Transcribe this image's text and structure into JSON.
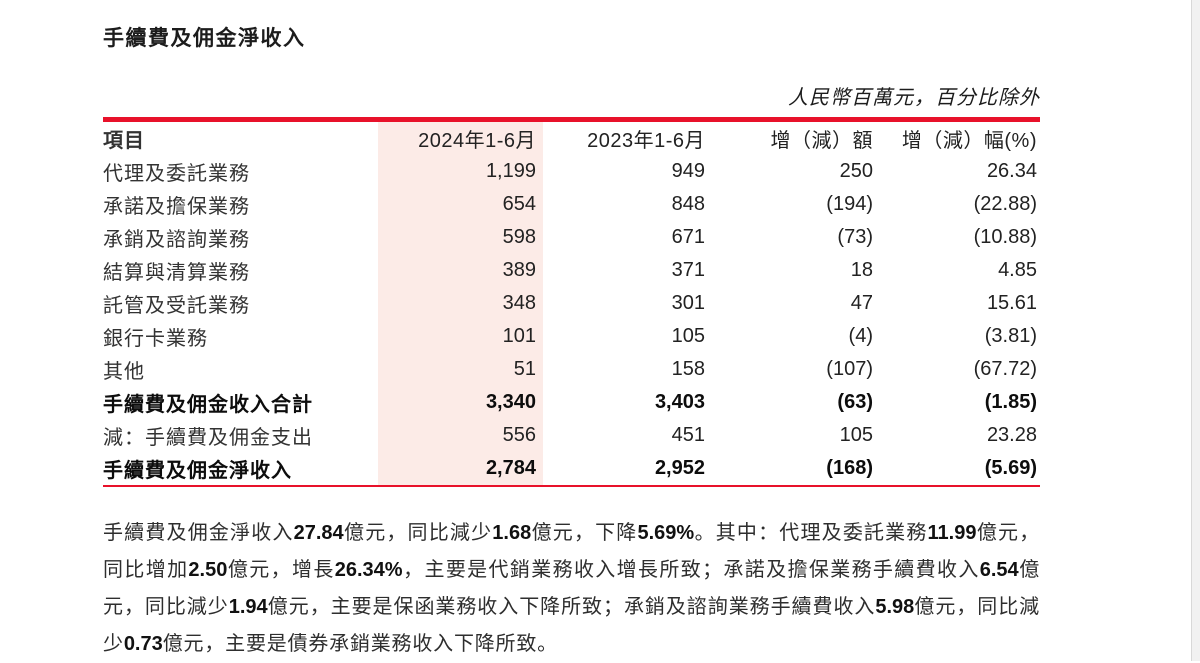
{
  "page": {
    "title": "手續費及佣金淨收入",
    "unit_note": "人民幣百萬元，百分比除外"
  },
  "table": {
    "columns": [
      "項目",
      "2024年1-6月",
      "2023年1-6月",
      "增（減）額",
      "增（減）幅(%)"
    ],
    "rows": [
      {
        "label": "代理及委託業務",
        "v2024": "1,199",
        "v2023": "949",
        "change": "250",
        "pct": "26.34"
      },
      {
        "label": "承諾及擔保業務",
        "v2024": "654",
        "v2023": "848",
        "change": "(194)",
        "pct": "(22.88)"
      },
      {
        "label": "承銷及諮詢業務",
        "v2024": "598",
        "v2023": "671",
        "change": "(73)",
        "pct": "(10.88)"
      },
      {
        "label": "結算與清算業務",
        "v2024": "389",
        "v2023": "371",
        "change": "18",
        "pct": "4.85"
      },
      {
        "label": "託管及受託業務",
        "v2024": "348",
        "v2023": "301",
        "change": "47",
        "pct": "15.61"
      },
      {
        "label": "銀行卡業務",
        "v2024": "101",
        "v2023": "105",
        "change": "(4)",
        "pct": "(3.81)"
      },
      {
        "label": "其他",
        "v2024": "51",
        "v2023": "158",
        "change": "(107)",
        "pct": "(67.72)"
      },
      {
        "label": "手續費及佣金收入合計",
        "v2024": "3,340",
        "v2023": "3,403",
        "change": "(63)",
        "pct": "(1.85)"
      },
      {
        "label": "減：手續費及佣金支出",
        "v2024": "556",
        "v2023": "451",
        "change": "105",
        "pct": "23.28"
      },
      {
        "label": "手續費及佣金淨收入",
        "v2024": "2,784",
        "v2023": "2,952",
        "change": "(168)",
        "pct": "(5.69)"
      }
    ]
  },
  "commentary": "手續費及佣金淨收入27.84億元，同比減少1.68億元，下降5.69%。其中：代理及委託業務11.99億元，同比增加2.50億元，增長26.34%，主要是代銷業務收入增長所致；承諾及擔保業務手續費收入6.54億元，同比減少1.94億元，主要是保函業務收入下降所致；承銷及諮詢業務手續費收入5.98億元，同比減少0.73億元，主要是債券承銷業務收入下降所致。",
  "colors": {
    "accent_red": "#e8112a",
    "highlight_pink": "#fcebe7"
  }
}
